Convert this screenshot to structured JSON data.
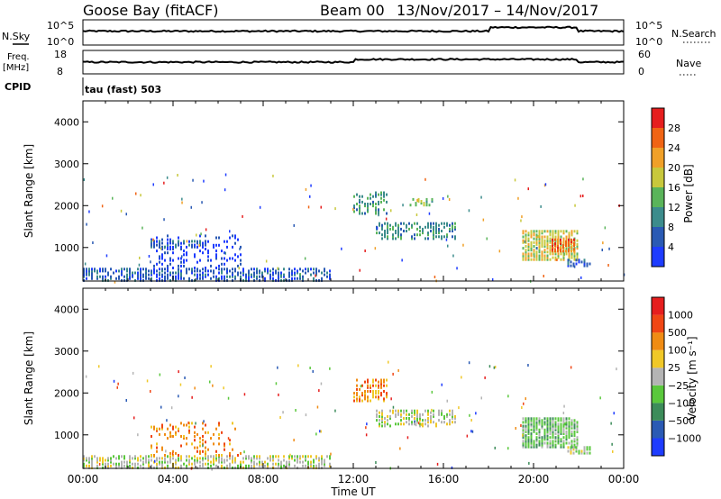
{
  "header": {
    "station": "Goose Bay (fitACF)",
    "beam": "Beam 00",
    "date_range": "13/Nov/2017 – 14/Nov/2017"
  },
  "panels": {
    "nsky": {
      "label": "N.Sky",
      "tick_top": "10^5",
      "tick_bottom": "10^0",
      "right_label": "N.Search",
      "right_tick_top": "10^5",
      "right_tick_bottom": "10^0",
      "level_before": 0.55,
      "level_after": 0.7,
      "change_time": 18.0,
      "end_drop_time": 22.0
    },
    "freq": {
      "label": "Freq.",
      "unit": "[MHz]",
      "tick_top": "18",
      "tick_bottom": "8",
      "right_label": "Nave",
      "right_tick_top": "60",
      "right_tick_bottom": "0",
      "level_before": 0.5,
      "level_after": 0.62,
      "change_time": 12.0,
      "end_drop_time": 22.0
    },
    "cpid": {
      "label": "CPID",
      "value": "tau (fast) 503"
    }
  },
  "chart_data": [
    {
      "type": "heatmap",
      "name": "power",
      "ylabel": "Slant Range [km]",
      "xlim": [
        0,
        24
      ],
      "ylim": [
        200,
        4500
      ],
      "yticks": [
        1000,
        2000,
        3000,
        4000
      ],
      "colorbar_label": "Power [dB]",
      "colorbar_ticks": [
        "4",
        "8",
        "12",
        "16",
        "20",
        "24",
        "28"
      ],
      "colorbar_colors": [
        "#1e3cff",
        "#2a5ab4",
        "#3c8c8c",
        "#5ab45a",
        "#c8c83c",
        "#f0a028",
        "#f06414",
        "#e61e1e"
      ],
      "regions": [
        {
          "t0": 0.0,
          "t1": 11.0,
          "r0": 200,
          "r1": 500,
          "level": 1,
          "density": 0.55
        },
        {
          "t0": 3.0,
          "t1": 7.0,
          "r0": 500,
          "r1": 1300,
          "level": 0,
          "density": 0.18
        },
        {
          "t0": 3.0,
          "t1": 5.5,
          "r0": 1000,
          "r1": 1150,
          "level": 1,
          "density": 0.6
        },
        {
          "t0": 12.0,
          "t1": 13.5,
          "r0": 1800,
          "r1": 2300,
          "level": 2,
          "density": 0.4
        },
        {
          "t0": 13.0,
          "t1": 16.5,
          "r0": 1200,
          "r1": 1600,
          "level": 2,
          "density": 0.5
        },
        {
          "t0": 14.5,
          "t1": 15.5,
          "r0": 2000,
          "r1": 2150,
          "level": 3,
          "density": 0.5
        },
        {
          "t0": 19.5,
          "t1": 22.0,
          "r0": 700,
          "r1": 1400,
          "level": 4,
          "density": 0.75
        },
        {
          "t0": 20.8,
          "t1": 21.8,
          "r0": 900,
          "r1": 1200,
          "level": 6,
          "density": 0.8
        },
        {
          "t0": 21.5,
          "t1": 22.5,
          "r0": 550,
          "r1": 700,
          "level": 1,
          "density": 0.6
        }
      ]
    },
    {
      "type": "heatmap",
      "name": "velocity",
      "ylabel": "Slant Range [km]",
      "xlabel": "Time UT",
      "xlim": [
        0,
        24
      ],
      "ylim": [
        200,
        4500
      ],
      "yticks": [
        1000,
        2000,
        3000,
        4000
      ],
      "xtick_labels": [
        "00:00",
        "04:00",
        "08:00",
        "12:00",
        "16:00",
        "20:00",
        "00:00"
      ],
      "colorbar_label": "Velocity [m s⁻¹]",
      "colorbar_ticks": [
        "1000",
        "500",
        "100",
        "25",
        "−25",
        "−100",
        "−500",
        "−1000"
      ],
      "colorbar_colors": [
        "#1e3cff",
        "#2a5ab4",
        "#3c8c5a",
        "#5ac83c",
        "#b4b4b4",
        "#f0c828",
        "#f08c14",
        "#f04614",
        "#e61e1e"
      ],
      "regions": [
        {
          "t0": 0.0,
          "t1": 11.0,
          "r0": 200,
          "r1": 500,
          "level": 4,
          "density": 0.55
        },
        {
          "t0": 3.0,
          "t1": 7.0,
          "r0": 500,
          "r1": 1300,
          "level": 6,
          "density": 0.18
        },
        {
          "t0": 12.0,
          "t1": 13.5,
          "r0": 1800,
          "r1": 2300,
          "level": 6,
          "density": 0.4
        },
        {
          "t0": 13.0,
          "t1": 16.5,
          "r0": 1200,
          "r1": 1600,
          "level": 4,
          "density": 0.5
        },
        {
          "t0": 19.5,
          "t1": 22.0,
          "r0": 700,
          "r1": 1400,
          "level": 3,
          "density": 0.75
        },
        {
          "t0": 21.5,
          "t1": 22.5,
          "r0": 550,
          "r1": 700,
          "level": 4,
          "density": 0.6
        }
      ]
    }
  ]
}
